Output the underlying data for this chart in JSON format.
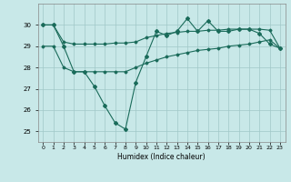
{
  "xlabel": "Humidex (Indice chaleur)",
  "x": [
    0,
    1,
    2,
    3,
    4,
    5,
    6,
    7,
    8,
    9,
    10,
    11,
    12,
    13,
    14,
    15,
    16,
    17,
    18,
    19,
    20,
    21,
    22,
    23
  ],
  "line_zigzag": [
    30.0,
    30.0,
    29.0,
    27.8,
    27.8,
    27.1,
    26.2,
    25.4,
    25.1,
    27.3,
    28.5,
    29.7,
    29.5,
    29.7,
    30.3,
    29.7,
    30.2,
    29.7,
    29.7,
    29.8,
    29.8,
    29.6,
    29.1,
    28.9
  ],
  "line_upper": [
    30.0,
    30.0,
    29.2,
    29.1,
    29.1,
    29.1,
    29.1,
    29.15,
    29.15,
    29.2,
    29.4,
    29.5,
    29.6,
    29.65,
    29.7,
    29.7,
    29.75,
    29.75,
    29.8,
    29.8,
    29.8,
    29.8,
    29.75,
    28.9
  ],
  "line_lower": [
    29.0,
    29.0,
    28.0,
    27.8,
    27.8,
    27.8,
    27.8,
    27.8,
    27.8,
    28.0,
    28.2,
    28.35,
    28.5,
    28.6,
    28.7,
    28.8,
    28.85,
    28.9,
    29.0,
    29.05,
    29.1,
    29.2,
    29.3,
    28.9
  ],
  "line_color": "#1a6b5a",
  "bg_color": "#c8e8e8",
  "grid_color": "#a0c8c8",
  "ylim": [
    24.5,
    31.0
  ],
  "yticks": [
    25,
    26,
    27,
    28,
    29,
    30
  ],
  "xlim": [
    -0.5,
    23.5
  ]
}
